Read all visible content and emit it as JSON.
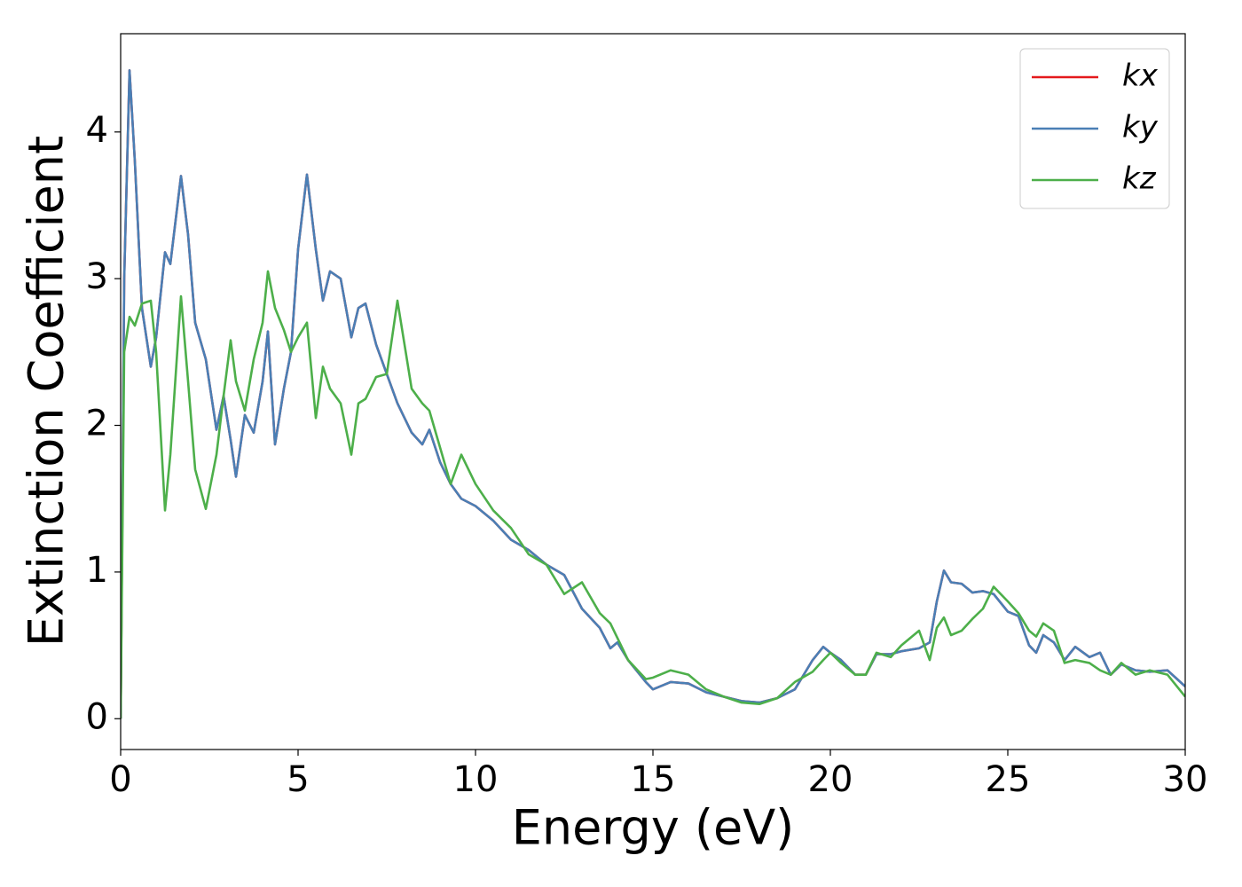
{
  "chart_data": {
    "type": "line",
    "x_label": "Energy (eV)",
    "y_label": "Extinction Coefficient",
    "xlim": [
      0,
      30
    ],
    "ylim": [
      -0.21,
      4.67
    ],
    "xticks": [
      0,
      5,
      10,
      15,
      20,
      25,
      30
    ],
    "yticks": [
      0,
      1,
      2,
      3,
      4
    ],
    "legend": "upper right",
    "x": [
      0,
      0.1,
      0.25,
      0.4,
      0.6,
      0.85,
      1.0,
      1.25,
      1.4,
      1.7,
      1.9,
      2.1,
      2.4,
      2.7,
      2.9,
      3.1,
      3.25,
      3.5,
      3.75,
      4.0,
      4.15,
      4.35,
      4.6,
      4.8,
      5.0,
      5.25,
      5.5,
      5.7,
      5.9,
      6.2,
      6.5,
      6.7,
      6.9,
      7.2,
      7.5,
      7.8,
      8.2,
      8.5,
      8.7,
      9.0,
      9.3,
      9.6,
      10.0,
      10.5,
      11.0,
      11.5,
      12.0,
      12.5,
      13.0,
      13.5,
      13.8,
      14.0,
      14.3,
      14.8,
      15.0,
      15.5,
      16.0,
      16.5,
      17.0,
      17.5,
      18.0,
      18.5,
      19.0,
      19.5,
      19.8,
      20.0,
      20.3,
      20.7,
      21.0,
      21.3,
      21.7,
      22.0,
      22.5,
      22.8,
      23.0,
      23.2,
      23.4,
      23.7,
      24.0,
      24.3,
      24.6,
      25.0,
      25.3,
      25.6,
      25.8,
      26.0,
      26.3,
      26.6,
      26.9,
      27.3,
      27.6,
      27.9,
      28.2,
      28.6,
      29.0,
      29.5,
      30.0
    ],
    "series": [
      {
        "name": "kx",
        "color": "#e41a1c",
        "values": [
          0,
          3.0,
          4.42,
          3.8,
          2.8,
          2.4,
          2.6,
          3.18,
          3.1,
          3.7,
          3.3,
          2.7,
          2.45,
          1.97,
          2.2,
          1.9,
          1.65,
          2.07,
          1.95,
          2.3,
          2.64,
          1.87,
          2.25,
          2.5,
          3.2,
          3.71,
          3.2,
          2.85,
          3.05,
          3.0,
          2.6,
          2.8,
          2.83,
          2.55,
          2.35,
          2.15,
          1.95,
          1.87,
          1.97,
          1.75,
          1.6,
          1.5,
          1.45,
          1.35,
          1.22,
          1.15,
          1.05,
          0.98,
          0.75,
          0.62,
          0.48,
          0.52,
          0.4,
          0.25,
          0.2,
          0.25,
          0.24,
          0.18,
          0.15,
          0.12,
          0.11,
          0.14,
          0.2,
          0.4,
          0.49,
          0.45,
          0.4,
          0.3,
          0.3,
          0.44,
          0.44,
          0.46,
          0.48,
          0.52,
          0.8,
          1.01,
          0.93,
          0.92,
          0.86,
          0.87,
          0.85,
          0.73,
          0.7,
          0.5,
          0.45,
          0.57,
          0.52,
          0.4,
          0.49,
          0.42,
          0.45,
          0.3,
          0.37,
          0.33,
          0.32,
          0.33,
          0.22
        ]
      },
      {
        "name": "ky",
        "color": "#4a7fb5",
        "values": [
          0,
          3.0,
          4.42,
          3.8,
          2.8,
          2.4,
          2.6,
          3.18,
          3.1,
          3.7,
          3.3,
          2.7,
          2.45,
          1.97,
          2.2,
          1.9,
          1.65,
          2.07,
          1.95,
          2.3,
          2.64,
          1.87,
          2.25,
          2.5,
          3.2,
          3.71,
          3.2,
          2.85,
          3.05,
          3.0,
          2.6,
          2.8,
          2.83,
          2.55,
          2.35,
          2.15,
          1.95,
          1.87,
          1.97,
          1.75,
          1.6,
          1.5,
          1.45,
          1.35,
          1.22,
          1.15,
          1.05,
          0.98,
          0.75,
          0.62,
          0.48,
          0.52,
          0.4,
          0.25,
          0.2,
          0.25,
          0.24,
          0.18,
          0.15,
          0.12,
          0.11,
          0.14,
          0.2,
          0.4,
          0.49,
          0.45,
          0.4,
          0.3,
          0.3,
          0.44,
          0.44,
          0.46,
          0.48,
          0.52,
          0.8,
          1.01,
          0.93,
          0.92,
          0.86,
          0.87,
          0.85,
          0.73,
          0.7,
          0.5,
          0.45,
          0.57,
          0.52,
          0.4,
          0.49,
          0.42,
          0.45,
          0.3,
          0.37,
          0.33,
          0.32,
          0.33,
          0.22
        ]
      },
      {
        "name": "kz",
        "color": "#4daf4a",
        "values": [
          0,
          2.5,
          2.74,
          2.68,
          2.83,
          2.85,
          2.5,
          1.42,
          1.8,
          2.88,
          2.3,
          1.7,
          1.43,
          1.8,
          2.2,
          2.58,
          2.3,
          2.1,
          2.45,
          2.7,
          3.05,
          2.8,
          2.65,
          2.5,
          2.6,
          2.7,
          2.05,
          2.4,
          2.25,
          2.15,
          1.8,
          2.15,
          2.18,
          2.33,
          2.35,
          2.85,
          2.25,
          2.15,
          2.1,
          1.85,
          1.6,
          1.8,
          1.6,
          1.42,
          1.3,
          1.12,
          1.05,
          0.85,
          0.93,
          0.72,
          0.65,
          0.55,
          0.4,
          0.27,
          0.28,
          0.33,
          0.3,
          0.2,
          0.15,
          0.11,
          0.1,
          0.14,
          0.25,
          0.32,
          0.4,
          0.45,
          0.38,
          0.3,
          0.3,
          0.45,
          0.42,
          0.5,
          0.6,
          0.4,
          0.62,
          0.69,
          0.57,
          0.6,
          0.68,
          0.75,
          0.9,
          0.8,
          0.72,
          0.6,
          0.56,
          0.65,
          0.6,
          0.38,
          0.4,
          0.38,
          0.33,
          0.3,
          0.38,
          0.3,
          0.33,
          0.3,
          0.15
        ]
      }
    ]
  }
}
